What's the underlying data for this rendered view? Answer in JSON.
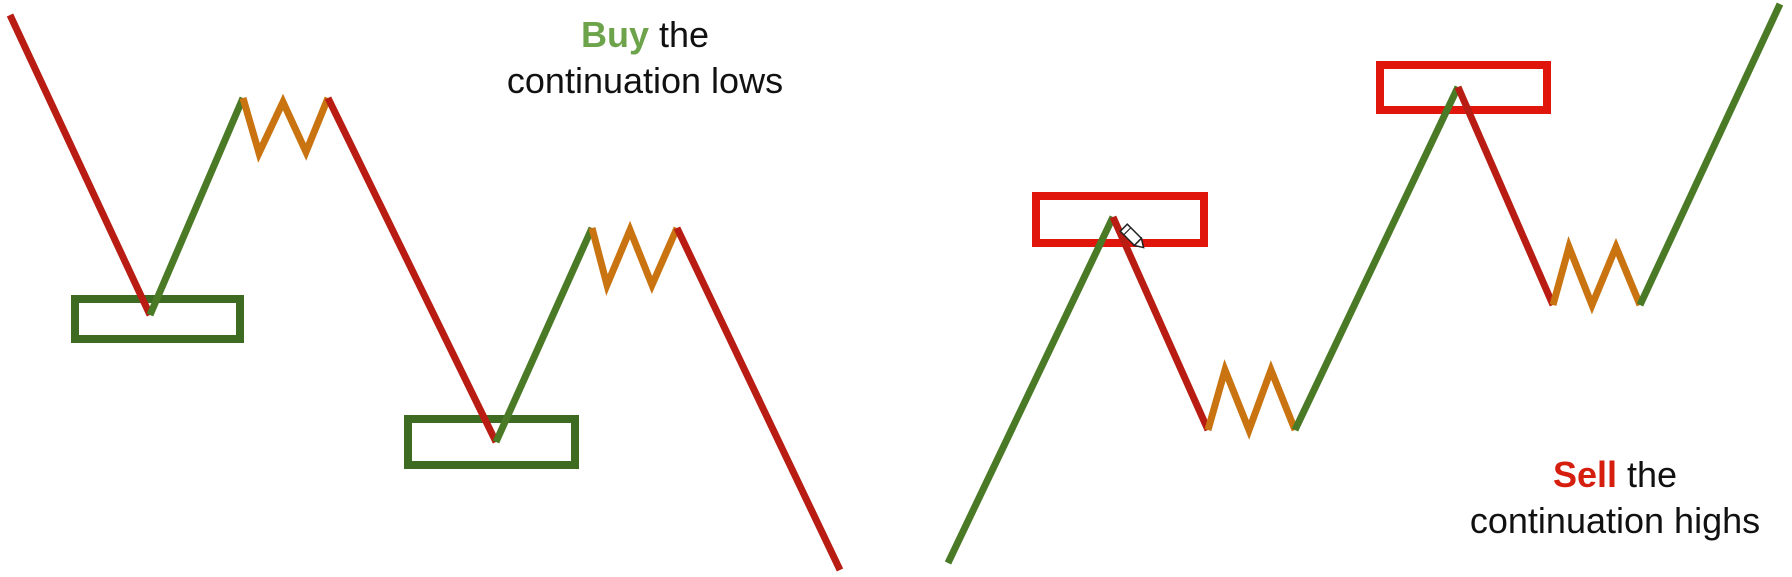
{
  "colors": {
    "down_leg": "#b81c12",
    "up_leg": "#4a7a25",
    "consolidation": "#c97410",
    "buy_zone": "#3e6b22",
    "sell_zone": "#e0160c",
    "buy_keyword": "#6da34a",
    "sell_keyword": "#d61e0f",
    "text": "#111111"
  },
  "buy_panel": {
    "keyword": "Buy",
    "rest": "the",
    "line2": "continuation lows"
  },
  "sell_panel": {
    "keyword": "Sell",
    "rest": "the",
    "line2": "continuation highs"
  },
  "icons": {
    "cursor": "pencil-cursor-icon"
  }
}
